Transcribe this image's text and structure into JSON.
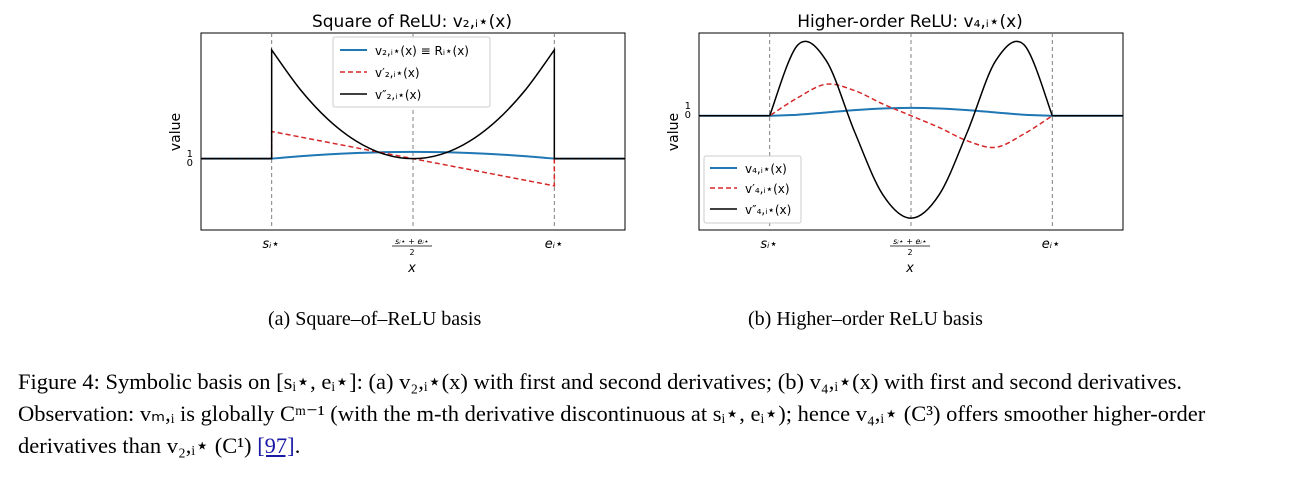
{
  "chart_data": [
    {
      "type": "line",
      "title": "Square of ReLU: v₂,ᵢ⋆(x)",
      "xlabel": "x",
      "ylabel": "value",
      "x_ticks": [
        "sᵢ⋆",
        "(sᵢ⋆ + eᵢ⋆)/2",
        "eᵢ⋆"
      ],
      "y_ticks": [
        "0",
        "1"
      ],
      "grid": "vertical dashed lines at sᵢ⋆, midpoint, eᵢ⋆",
      "legend_position": "top-center",
      "x": [
        -0.25,
        0,
        0.1,
        0.2,
        0.3,
        0.4,
        0.5,
        0.6,
        0.7,
        0.8,
        0.9,
        1.0,
        1.25
      ],
      "series": [
        {
          "name": "v₂,ᵢ⋆(x) ≡ Rᵢ⋆(x)",
          "color": "#1f77b4",
          "style": "solid",
          "values": [
            0,
            0,
            0.36,
            0.64,
            0.84,
            0.96,
            1.0,
            0.96,
            0.84,
            0.64,
            0.36,
            0,
            0
          ]
        },
        {
          "name": "v′₂,ᵢ⋆(x)",
          "color": "#d62728",
          "style": "dashed",
          "values": [
            0,
            4.0,
            3.2,
            2.4,
            1.6,
            0.8,
            0,
            -0.8,
            -1.6,
            -2.4,
            -3.2,
            -4.0,
            0
          ]
        },
        {
          "name": "v″₂,ᵢ⋆(x)",
          "color": "#000000",
          "style": "solid",
          "values": [
            0,
            16.0,
            10.24,
            5.76,
            2.56,
            0.64,
            0,
            0.64,
            2.56,
            5.76,
            10.24,
            16.0,
            0
          ]
        }
      ]
    },
    {
      "type": "line",
      "title": "Higher-order ReLU: v₄,ᵢ⋆(x)",
      "xlabel": "x",
      "ylabel": "value",
      "x_ticks": [
        "sᵢ⋆",
        "(sᵢ⋆ + eᵢ⋆)/2",
        "eᵢ⋆"
      ],
      "y_ticks": [
        "0",
        "1"
      ],
      "grid": "vertical dashed lines at sᵢ⋆, midpoint, eᵢ⋆",
      "legend_position": "bottom-left",
      "x": [
        -0.25,
        0,
        0.1,
        0.2,
        0.3,
        0.4,
        0.5,
        0.6,
        0.7,
        0.8,
        0.9,
        1.0,
        1.25
      ],
      "series": [
        {
          "name": "v₄,ᵢ⋆(x)",
          "color": "#1f77b4",
          "style": "solid",
          "values": [
            0,
            0,
            0.13,
            0.41,
            0.71,
            0.92,
            1.0,
            0.92,
            0.71,
            0.41,
            0.13,
            0,
            0
          ]
        },
        {
          "name": "v′₄,ᵢ⋆(x)",
          "color": "#d62728",
          "style": "dashed",
          "values": [
            0,
            0,
            2.3,
            4.0,
            3.2,
            1.5,
            0,
            -1.5,
            -3.2,
            -4.0,
            -2.3,
            0,
            0
          ]
        },
        {
          "name": "v″₄,ᵢ⋆(x)",
          "color": "#000000",
          "style": "solid",
          "values": [
            0,
            0,
            9.0,
            7.0,
            -2.0,
            -10.0,
            -13.0,
            -10.0,
            -2.0,
            7.0,
            9.0,
            0,
            0
          ]
        }
      ]
    }
  ],
  "panels": [
    {
      "title": "Square of ReLU: v₂,ᵢ⋆(x)",
      "ylabel": "value",
      "xlabel": "x",
      "xtick_s": "sᵢ⋆",
      "xtick_mid_num": "sᵢ⋆ + eᵢ⋆",
      "xtick_mid_den": "2",
      "xtick_e": "eᵢ⋆",
      "ytick_0": "0",
      "ytick_1": "1",
      "legend": [
        "v₂,ᵢ⋆(x) ≡ Rᵢ⋆(x)",
        "v′₂,ᵢ⋆(x)",
        "v″₂,ᵢ⋆(x)"
      ],
      "subcaption": "(a) Square–of–ReLU basis"
    },
    {
      "title": "Higher-order ReLU: v₄,ᵢ⋆(x)",
      "ylabel": "value",
      "xlabel": "x",
      "xtick_s": "sᵢ⋆",
      "xtick_mid_num": "sᵢ⋆ + eᵢ⋆",
      "xtick_mid_den": "2",
      "xtick_e": "eᵢ⋆",
      "ytick_0": "0",
      "ytick_1": "1",
      "legend": [
        "v₄,ᵢ⋆(x)",
        "v′₄,ᵢ⋆(x)",
        "v″₄,ᵢ⋆(x)"
      ],
      "subcaption": "(b) Higher–order ReLU basis"
    }
  ],
  "caption": {
    "p1": "Figure 4: Symbolic basis on [sᵢ⋆, eᵢ⋆]: (a) v₂,ᵢ⋆(x) with first and second derivatives; (b) v₄,ᵢ⋆(x) with first and second derivatives. Observation: vₘ,ᵢ is globally Cᵐ⁻¹ (with the m-th derivative discontinuous at sᵢ⋆, eᵢ⋆); hence v₄,ᵢ⋆ (C³) offers smoother higher-order derivatives than v₂,ᵢ⋆ (C¹) ",
    "ref": "[97]",
    "end": "."
  },
  "colors": {
    "blue": "#1f77b4",
    "red": "#d62728",
    "black": "#000000",
    "grid": "#808080"
  }
}
